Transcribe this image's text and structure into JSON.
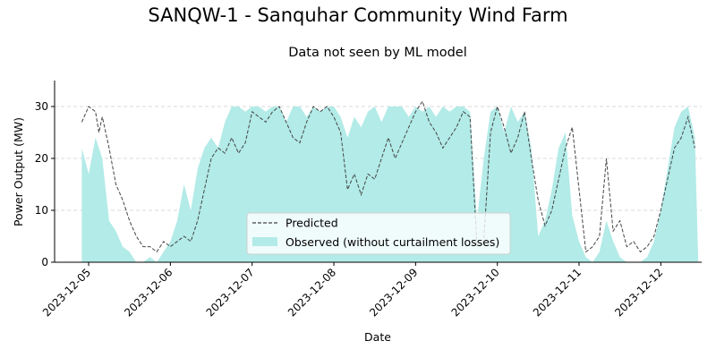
{
  "figure": {
    "title": "SANQW-1 - Sanquhar Community Wind Farm",
    "subtitle": "Data not seen by ML model"
  },
  "colors": {
    "observed_fill": "#b2ebe8",
    "predicted_line": "#444444",
    "grid": "#cccccc",
    "axis": "#000000"
  },
  "chart_data": {
    "type": "area",
    "title": "Data not seen by ML model",
    "xlabel": "Date",
    "ylabel": "Power Output (MW)",
    "x_ticks": [
      "2023-12-05",
      "2023-12-06",
      "2023-12-07",
      "2023-12-08",
      "2023-12-09",
      "2023-12-10",
      "2023-12-11",
      "2023-12-12"
    ],
    "y_ticks": [
      0,
      10,
      20,
      30
    ],
    "xlim": [
      "2023-12-04T14:00",
      "2023-12-12T12:00"
    ],
    "ylim": [
      0,
      35
    ],
    "grid": "horizontal dashed",
    "legend_position": "lower center",
    "series": [
      {
        "name": "Predicted",
        "style": "dashed line",
        "points": [
          [
            "2023-12-04T22:00",
            27
          ],
          [
            "2023-12-05T00:00",
            30
          ],
          [
            "2023-12-05T02:00",
            29
          ],
          [
            "2023-12-05T03:00",
            25
          ],
          [
            "2023-12-05T04:00",
            28
          ],
          [
            "2023-12-05T06:00",
            22
          ],
          [
            "2023-12-05T08:00",
            15
          ],
          [
            "2023-12-05T10:00",
            12
          ],
          [
            "2023-12-05T12:00",
            8
          ],
          [
            "2023-12-05T14:00",
            5
          ],
          [
            "2023-12-05T16:00",
            3
          ],
          [
            "2023-12-05T18:00",
            3
          ],
          [
            "2023-12-05T20:00",
            2
          ],
          [
            "2023-12-05T22:00",
            4
          ],
          [
            "2023-12-06T00:00",
            3
          ],
          [
            "2023-12-06T02:00",
            4
          ],
          [
            "2023-12-06T04:00",
            5
          ],
          [
            "2023-12-06T06:00",
            4
          ],
          [
            "2023-12-06T08:00",
            8
          ],
          [
            "2023-12-06T10:00",
            14
          ],
          [
            "2023-12-06T12:00",
            20
          ],
          [
            "2023-12-06T14:00",
            22
          ],
          [
            "2023-12-06T16:00",
            21
          ],
          [
            "2023-12-06T18:00",
            24
          ],
          [
            "2023-12-06T20:00",
            21
          ],
          [
            "2023-12-06T22:00",
            23
          ],
          [
            "2023-12-07T00:00",
            29
          ],
          [
            "2023-12-07T02:00",
            28
          ],
          [
            "2023-12-07T04:00",
            27
          ],
          [
            "2023-12-07T06:00",
            29
          ],
          [
            "2023-12-07T08:00",
            30
          ],
          [
            "2023-12-07T10:00",
            27
          ],
          [
            "2023-12-07T12:00",
            24
          ],
          [
            "2023-12-07T14:00",
            23
          ],
          [
            "2023-12-07T16:00",
            27
          ],
          [
            "2023-12-07T18:00",
            30
          ],
          [
            "2023-12-07T20:00",
            29
          ],
          [
            "2023-12-07T22:00",
            30
          ],
          [
            "2023-12-08T00:00",
            28
          ],
          [
            "2023-12-08T02:00",
            25
          ],
          [
            "2023-12-08T04:00",
            14
          ],
          [
            "2023-12-08T06:00",
            17
          ],
          [
            "2023-12-08T08:00",
            13
          ],
          [
            "2023-12-08T10:00",
            17
          ],
          [
            "2023-12-08T12:00",
            16
          ],
          [
            "2023-12-08T14:00",
            20
          ],
          [
            "2023-12-08T16:00",
            24
          ],
          [
            "2023-12-08T18:00",
            20
          ],
          [
            "2023-12-08T20:00",
            23
          ],
          [
            "2023-12-08T22:00",
            26
          ],
          [
            "2023-12-09T00:00",
            29
          ],
          [
            "2023-12-09T02:00",
            31
          ],
          [
            "2023-12-09T04:00",
            27
          ],
          [
            "2023-12-09T06:00",
            25
          ],
          [
            "2023-12-09T08:00",
            22
          ],
          [
            "2023-12-09T10:00",
            24
          ],
          [
            "2023-12-09T12:00",
            26
          ],
          [
            "2023-12-09T14:00",
            29
          ],
          [
            "2023-12-09T16:00",
            28
          ],
          [
            "2023-12-09T18:00",
            3
          ],
          [
            "2023-12-09T20:00",
            4
          ],
          [
            "2023-12-09T22:00",
            25
          ],
          [
            "2023-12-10T00:00",
            30
          ],
          [
            "2023-12-10T02:00",
            26
          ],
          [
            "2023-12-10T04:00",
            21
          ],
          [
            "2023-12-10T06:00",
            24
          ],
          [
            "2023-12-10T08:00",
            29
          ],
          [
            "2023-12-10T10:00",
            20
          ],
          [
            "2023-12-10T12:00",
            12
          ],
          [
            "2023-12-10T14:00",
            7
          ],
          [
            "2023-12-10T16:00",
            10
          ],
          [
            "2023-12-10T18:00",
            16
          ],
          [
            "2023-12-10T20:00",
            22
          ],
          [
            "2023-12-10T22:00",
            26
          ],
          [
            "2023-12-11T00:00",
            14
          ],
          [
            "2023-12-11T02:00",
            2
          ],
          [
            "2023-12-11T04:00",
            3
          ],
          [
            "2023-12-11T06:00",
            5
          ],
          [
            "2023-12-11T08:00",
            20
          ],
          [
            "2023-12-11T10:00",
            6
          ],
          [
            "2023-12-11T12:00",
            8
          ],
          [
            "2023-12-11T14:00",
            3
          ],
          [
            "2023-12-11T16:00",
            4
          ],
          [
            "2023-12-11T18:00",
            2
          ],
          [
            "2023-12-11T20:00",
            3
          ],
          [
            "2023-12-11T22:00",
            5
          ],
          [
            "2023-12-12T00:00",
            10
          ],
          [
            "2023-12-12T02:00",
            16
          ],
          [
            "2023-12-12T04:00",
            22
          ],
          [
            "2023-12-12T06:00",
            24
          ],
          [
            "2023-12-12T08:00",
            28
          ],
          [
            "2023-12-12T10:00",
            22
          ]
        ]
      },
      {
        "name": "Observed (without curtailment losses)",
        "style": "filled area",
        "points": [
          [
            "2023-12-04T22:00",
            22
          ],
          [
            "2023-12-05T00:00",
            17
          ],
          [
            "2023-12-05T02:00",
            24
          ],
          [
            "2023-12-05T04:00",
            20
          ],
          [
            "2023-12-05T06:00",
            8
          ],
          [
            "2023-12-05T08:00",
            6
          ],
          [
            "2023-12-05T10:00",
            3
          ],
          [
            "2023-12-05T12:00",
            2
          ],
          [
            "2023-12-05T14:00",
            0
          ],
          [
            "2023-12-05T16:00",
            0
          ],
          [
            "2023-12-05T18:00",
            1
          ],
          [
            "2023-12-05T20:00",
            0
          ],
          [
            "2023-12-05T22:00",
            2
          ],
          [
            "2023-12-06T00:00",
            4
          ],
          [
            "2023-12-06T02:00",
            8
          ],
          [
            "2023-12-06T04:00",
            15
          ],
          [
            "2023-12-06T06:00",
            10
          ],
          [
            "2023-12-06T08:00",
            18
          ],
          [
            "2023-12-06T10:00",
            22
          ],
          [
            "2023-12-06T12:00",
            24
          ],
          [
            "2023-12-06T14:00",
            22
          ],
          [
            "2023-12-06T16:00",
            27
          ],
          [
            "2023-12-06T18:00",
            30
          ],
          [
            "2023-12-06T20:00",
            30
          ],
          [
            "2023-12-06T22:00",
            29
          ],
          [
            "2023-12-07T00:00",
            30
          ],
          [
            "2023-12-07T02:00",
            30
          ],
          [
            "2023-12-07T04:00",
            29
          ],
          [
            "2023-12-07T06:00",
            30
          ],
          [
            "2023-12-07T08:00",
            30
          ],
          [
            "2023-12-07T10:00",
            27
          ],
          [
            "2023-12-07T12:00",
            30
          ],
          [
            "2023-12-07T14:00",
            30
          ],
          [
            "2023-12-07T16:00",
            28
          ],
          [
            "2023-12-07T18:00",
            30
          ],
          [
            "2023-12-07T20:00",
            29
          ],
          [
            "2023-12-07T22:00",
            30
          ],
          [
            "2023-12-08T00:00",
            30
          ],
          [
            "2023-12-08T02:00",
            28
          ],
          [
            "2023-12-08T04:00",
            24
          ],
          [
            "2023-12-08T06:00",
            28
          ],
          [
            "2023-12-08T08:00",
            26
          ],
          [
            "2023-12-08T10:00",
            29
          ],
          [
            "2023-12-08T12:00",
            30
          ],
          [
            "2023-12-08T14:00",
            27
          ],
          [
            "2023-12-08T16:00",
            30
          ],
          [
            "2023-12-08T18:00",
            30
          ],
          [
            "2023-12-08T20:00",
            30
          ],
          [
            "2023-12-08T22:00",
            28
          ],
          [
            "2023-12-09T00:00",
            30
          ],
          [
            "2023-12-09T02:00",
            29
          ],
          [
            "2023-12-09T04:00",
            30
          ],
          [
            "2023-12-09T06:00",
            28
          ],
          [
            "2023-12-09T08:00",
            30
          ],
          [
            "2023-12-09T10:00",
            29
          ],
          [
            "2023-12-09T12:00",
            30
          ],
          [
            "2023-12-09T14:00",
            30
          ],
          [
            "2023-12-09T16:00",
            29
          ],
          [
            "2023-12-09T18:00",
            8
          ],
          [
            "2023-12-09T20:00",
            20
          ],
          [
            "2023-12-09T22:00",
            29
          ],
          [
            "2023-12-10T00:00",
            30
          ],
          [
            "2023-12-10T02:00",
            25
          ],
          [
            "2023-12-10T04:00",
            30
          ],
          [
            "2023-12-10T06:00",
            27
          ],
          [
            "2023-12-10T08:00",
            29
          ],
          [
            "2023-12-10T10:00",
            22
          ],
          [
            "2023-12-10T12:00",
            5
          ],
          [
            "2023-12-10T14:00",
            8
          ],
          [
            "2023-12-10T16:00",
            14
          ],
          [
            "2023-12-10T18:00",
            22
          ],
          [
            "2023-12-10T20:00",
            25
          ],
          [
            "2023-12-10T22:00",
            9
          ],
          [
            "2023-12-11T00:00",
            4
          ],
          [
            "2023-12-11T02:00",
            1
          ],
          [
            "2023-12-11T04:00",
            0
          ],
          [
            "2023-12-11T06:00",
            2
          ],
          [
            "2023-12-11T08:00",
            8
          ],
          [
            "2023-12-11T10:00",
            4
          ],
          [
            "2023-12-11T12:00",
            1
          ],
          [
            "2023-12-11T14:00",
            0
          ],
          [
            "2023-12-11T16:00",
            0
          ],
          [
            "2023-12-11T18:00",
            0
          ],
          [
            "2023-12-11T20:00",
            1
          ],
          [
            "2023-12-11T22:00",
            4
          ],
          [
            "2023-12-12T00:00",
            10
          ],
          [
            "2023-12-12T02:00",
            18
          ],
          [
            "2023-12-12T04:00",
            26
          ],
          [
            "2023-12-12T06:00",
            29
          ],
          [
            "2023-12-12T08:00",
            30
          ],
          [
            "2023-12-12T10:00",
            24
          ],
          [
            "2023-12-12T11:00",
            0
          ]
        ]
      }
    ]
  }
}
